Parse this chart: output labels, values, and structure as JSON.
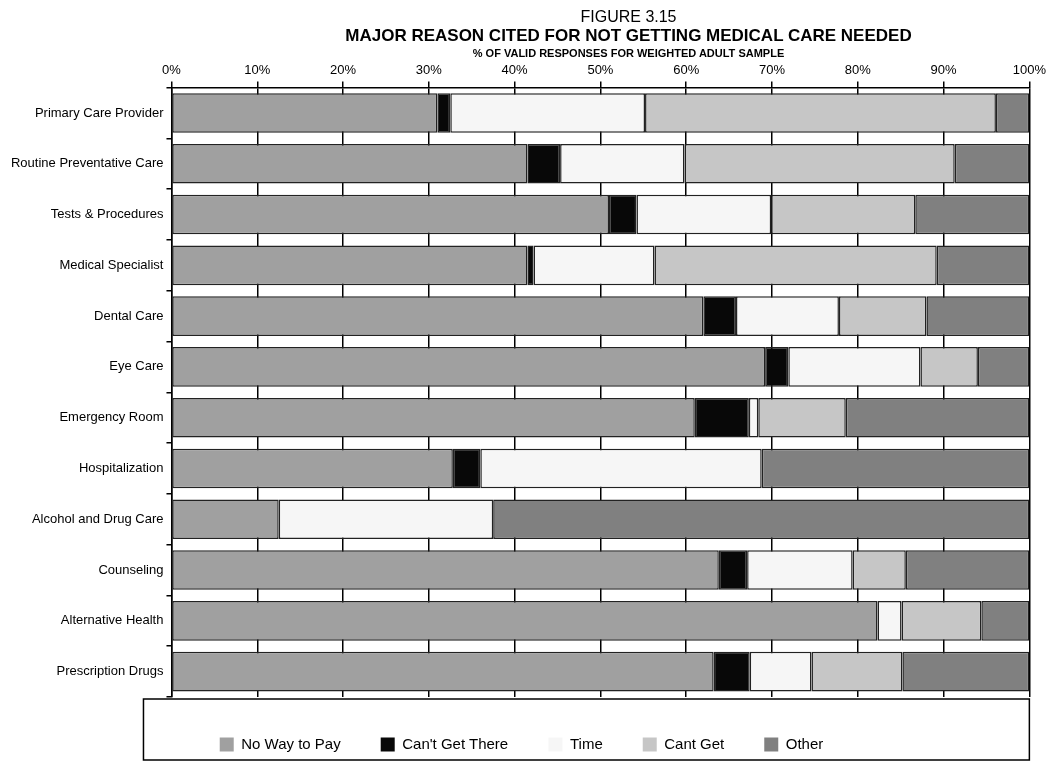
{
  "chart_data": {
    "type": "bar",
    "orientation": "horizontal",
    "stacked": true,
    "title": "MAJOR REASON CITED FOR NOT GETTING MEDICAL CARE NEEDED",
    "subtitle": "% OF VALID RESPONSES FOR WEIGHTED ADULT SAMPLE",
    "annotations": [
      "FIGURE 3.15"
    ],
    "categories": [
      "Primary Care Provider",
      "Routine Preventative Care",
      "Tests & Procedures",
      "Medical Specialist",
      "Dental Care",
      "Eye Care",
      "Emergency Room",
      "Hospitalization",
      "Alcohol and Drug Care",
      "Counseling",
      "Alternative Health",
      "Prescription Drugs"
    ],
    "series": [
      {
        "name": "No Way to Pay",
        "color": "#a0a0a0",
        "values": [
          31.0,
          41.5,
          51.0,
          41.5,
          62.0,
          69.2,
          61.0,
          32.8,
          12.5,
          63.8,
          82.3,
          63.2
        ]
      },
      {
        "name": "Can't Get There",
        "color": "#080808",
        "values": [
          1.5,
          3.8,
          3.2,
          0.7,
          3.8,
          2.7,
          6.3,
          3.2,
          0,
          3.3,
          0,
          4.2
        ]
      },
      {
        "name": "Time",
        "color": "#f6f6f6",
        "values": [
          22.7,
          14.5,
          15.7,
          14.1,
          12.0,
          15.4,
          1.1,
          32.8,
          25.0,
          12.3,
          2.8,
          7.2
        ]
      },
      {
        "name": "Cant Get",
        "color": "#c6c6c6",
        "values": [
          40.9,
          31.5,
          16.8,
          32.9,
          10.2,
          6.7,
          10.2,
          0,
          0,
          6.2,
          9.3,
          10.6
        ]
      },
      {
        "name": "Other",
        "color": "#808080",
        "values": [
          3.9,
          8.7,
          13.3,
          10.8,
          12.0,
          6.0,
          21.4,
          31.2,
          62.5,
          14.4,
          5.6,
          14.8
        ]
      }
    ],
    "xlim": [
      0,
      100
    ],
    "xticks": [
      {
        "value": 0,
        "label": "0%"
      },
      {
        "value": 10,
        "label": "10%"
      },
      {
        "value": 20,
        "label": "20%"
      },
      {
        "value": 30,
        "label": "30%"
      },
      {
        "value": 40,
        "label": "40%"
      },
      {
        "value": 50,
        "label": "50%"
      },
      {
        "value": 60,
        "label": "60%"
      },
      {
        "value": 70,
        "label": "70%"
      },
      {
        "value": 80,
        "label": "80%"
      },
      {
        "value": 90,
        "label": "90%"
      },
      {
        "value": 100,
        "label": "100%"
      }
    ],
    "grid": "x",
    "legend": "bottom"
  }
}
